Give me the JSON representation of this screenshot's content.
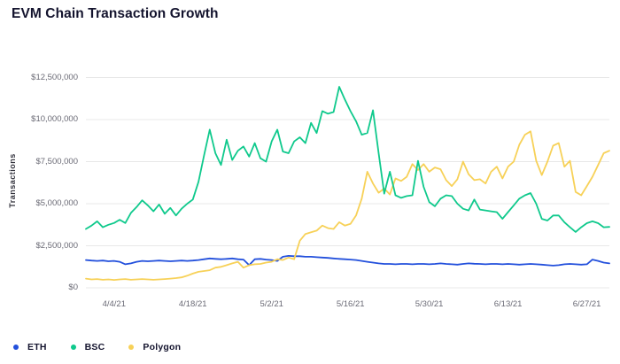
{
  "title": "EVM Chain Transaction Growth",
  "colors": {
    "background": "#ffffff",
    "gridline": "#e8e8e8",
    "title_text": "#14142e",
    "axis_text": "#6a6a75",
    "eth_blue": "#2350dc",
    "bsc_green": "#0fc98c",
    "polygon_yellow": "#f7d158"
  },
  "y_axis": {
    "title": "Transactions",
    "labels": [
      "$12,500,000",
      "$10,000,000",
      "$7,500,000",
      "$5,000,000",
      "$2,500,000",
      "$0"
    ]
  },
  "x_axis": {
    "labels": [
      "4/4/21",
      "4/18/21",
      "5/2/21",
      "5/16/21",
      "5/30/21",
      "6/13/21",
      "6/27/21"
    ]
  },
  "legend": {
    "items": [
      {
        "label": "ETH"
      },
      {
        "label": "BSC"
      },
      {
        "label": "Polygon"
      }
    ]
  },
  "chart_data": {
    "type": "line",
    "title": "EVM Chain Transaction Growth",
    "xlabel": "",
    "ylabel": "Transactions",
    "grid": "horizontal",
    "legend_position": "bottom-left",
    "unit": "transactions per day, values stored in millions",
    "ylim_millions": [
      0,
      12.5
    ],
    "y_grid_values_millions": [
      0,
      2.5,
      5,
      7.5,
      10,
      12.5
    ],
    "x_tick_labels": [
      "4/4/21",
      "4/18/21",
      "5/2/21",
      "5/16/21",
      "5/30/21",
      "6/13/21",
      "6/27/21"
    ],
    "x_tick_indices": [
      5,
      19,
      33,
      47,
      61,
      75,
      89
    ],
    "x_description": "daily data points, approx 3/30/21 through 7/1/21",
    "series": [
      {
        "name": "ETH",
        "color": "#2350dc",
        "values_millions": [
          1.65,
          1.62,
          1.6,
          1.62,
          1.58,
          1.6,
          1.55,
          1.4,
          1.45,
          1.55,
          1.6,
          1.58,
          1.6,
          1.62,
          1.6,
          1.58,
          1.6,
          1.62,
          1.6,
          1.62,
          1.65,
          1.7,
          1.75,
          1.72,
          1.7,
          1.72,
          1.75,
          1.7,
          1.68,
          1.35,
          1.7,
          1.72,
          1.68,
          1.65,
          1.6,
          1.85,
          1.9,
          1.88,
          1.88,
          1.85,
          1.85,
          1.82,
          1.8,
          1.78,
          1.75,
          1.72,
          1.7,
          1.68,
          1.65,
          1.6,
          1.55,
          1.5,
          1.45,
          1.42,
          1.42,
          1.4,
          1.42,
          1.42,
          1.4,
          1.42,
          1.42,
          1.4,
          1.42,
          1.45,
          1.42,
          1.4,
          1.38,
          1.42,
          1.45,
          1.43,
          1.42,
          1.4,
          1.42,
          1.42,
          1.4,
          1.42,
          1.4,
          1.38,
          1.4,
          1.42,
          1.4,
          1.38,
          1.35,
          1.32,
          1.35,
          1.4,
          1.42,
          1.4,
          1.38,
          1.4,
          1.68,
          1.6,
          1.5,
          1.45
        ]
      },
      {
        "name": "BSC",
        "color": "#0fc98c",
        "values_millions": [
          3.5,
          3.7,
          3.95,
          3.6,
          3.75,
          3.85,
          4.05,
          3.85,
          4.45,
          4.8,
          5.2,
          4.9,
          4.55,
          4.95,
          4.4,
          4.75,
          4.3,
          4.7,
          5.0,
          5.25,
          6.3,
          7.9,
          9.4,
          8.0,
          7.3,
          8.8,
          7.6,
          8.15,
          8.4,
          7.8,
          8.6,
          7.7,
          7.5,
          8.7,
          9.4,
          8.1,
          8.0,
          8.7,
          8.95,
          8.6,
          9.8,
          9.2,
          10.5,
          10.35,
          10.45,
          11.95,
          11.2,
          10.5,
          9.9,
          9.1,
          9.2,
          10.55,
          8.0,
          5.6,
          6.9,
          5.5,
          5.35,
          5.45,
          5.5,
          7.55,
          6.0,
          5.1,
          4.85,
          5.3,
          5.5,
          5.45,
          5.0,
          4.7,
          4.6,
          5.25,
          4.65,
          4.6,
          4.55,
          4.5,
          4.1,
          4.5,
          4.9,
          5.3,
          5.5,
          5.63,
          5.0,
          4.1,
          4.0,
          4.3,
          4.3,
          3.9,
          3.6,
          3.32,
          3.6,
          3.84,
          3.95,
          3.84,
          3.6,
          3.62
        ]
      },
      {
        "name": "Polygon",
        "color": "#f7d158",
        "values_millions": [
          0.55,
          0.5,
          0.52,
          0.48,
          0.5,
          0.47,
          0.5,
          0.52,
          0.48,
          0.5,
          0.52,
          0.5,
          0.48,
          0.5,
          0.52,
          0.55,
          0.58,
          0.62,
          0.72,
          0.85,
          0.95,
          1.0,
          1.05,
          1.2,
          1.25,
          1.35,
          1.45,
          1.55,
          1.2,
          1.35,
          1.4,
          1.42,
          1.5,
          1.55,
          1.7,
          1.65,
          1.8,
          1.7,
          2.8,
          3.2,
          3.3,
          3.4,
          3.7,
          3.55,
          3.5,
          3.9,
          3.7,
          3.8,
          4.3,
          5.3,
          6.9,
          6.2,
          5.65,
          5.9,
          5.55,
          6.5,
          6.35,
          6.6,
          7.35,
          7.0,
          7.35,
          6.9,
          7.15,
          7.05,
          6.4,
          6.05,
          6.45,
          7.5,
          6.75,
          6.4,
          6.45,
          6.2,
          6.9,
          7.2,
          6.5,
          7.2,
          7.5,
          8.5,
          9.1,
          9.3,
          7.55,
          6.7,
          7.5,
          8.45,
          8.6,
          7.2,
          7.55,
          5.7,
          5.5,
          6.05,
          6.6,
          7.3,
          8.0,
          8.15
        ]
      }
    ]
  }
}
